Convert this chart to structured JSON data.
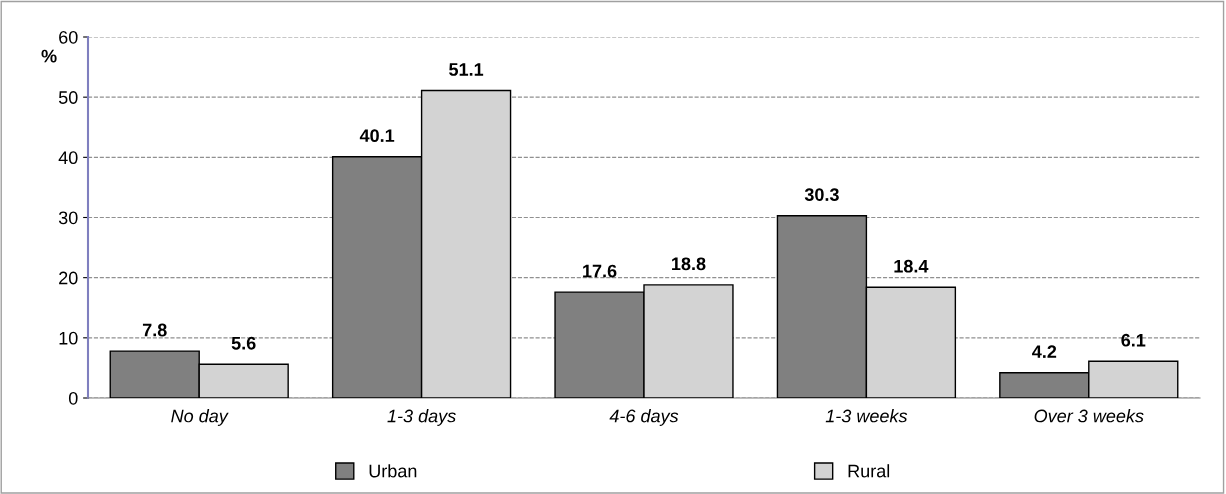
{
  "chart_data": {
    "type": "bar",
    "ylabel": "%",
    "categories": [
      "No day",
      "1-3 days",
      "4-6 days",
      "1-3 weeks",
      "Over 3 weeks"
    ],
    "series": [
      {
        "name": "Urban",
        "color": "#808080",
        "values": [
          7.8,
          40.1,
          17.6,
          30.3,
          4.2
        ]
      },
      {
        "name": "Rural",
        "color": "#d3d3d3",
        "values": [
          5.6,
          51.1,
          18.8,
          18.4,
          6.1
        ]
      }
    ],
    "ylim": [
      0,
      60
    ],
    "yticks": [
      0,
      10,
      20,
      30,
      40,
      50,
      60
    ],
    "grid": "y",
    "legend": "bottom",
    "data_labels": true
  }
}
